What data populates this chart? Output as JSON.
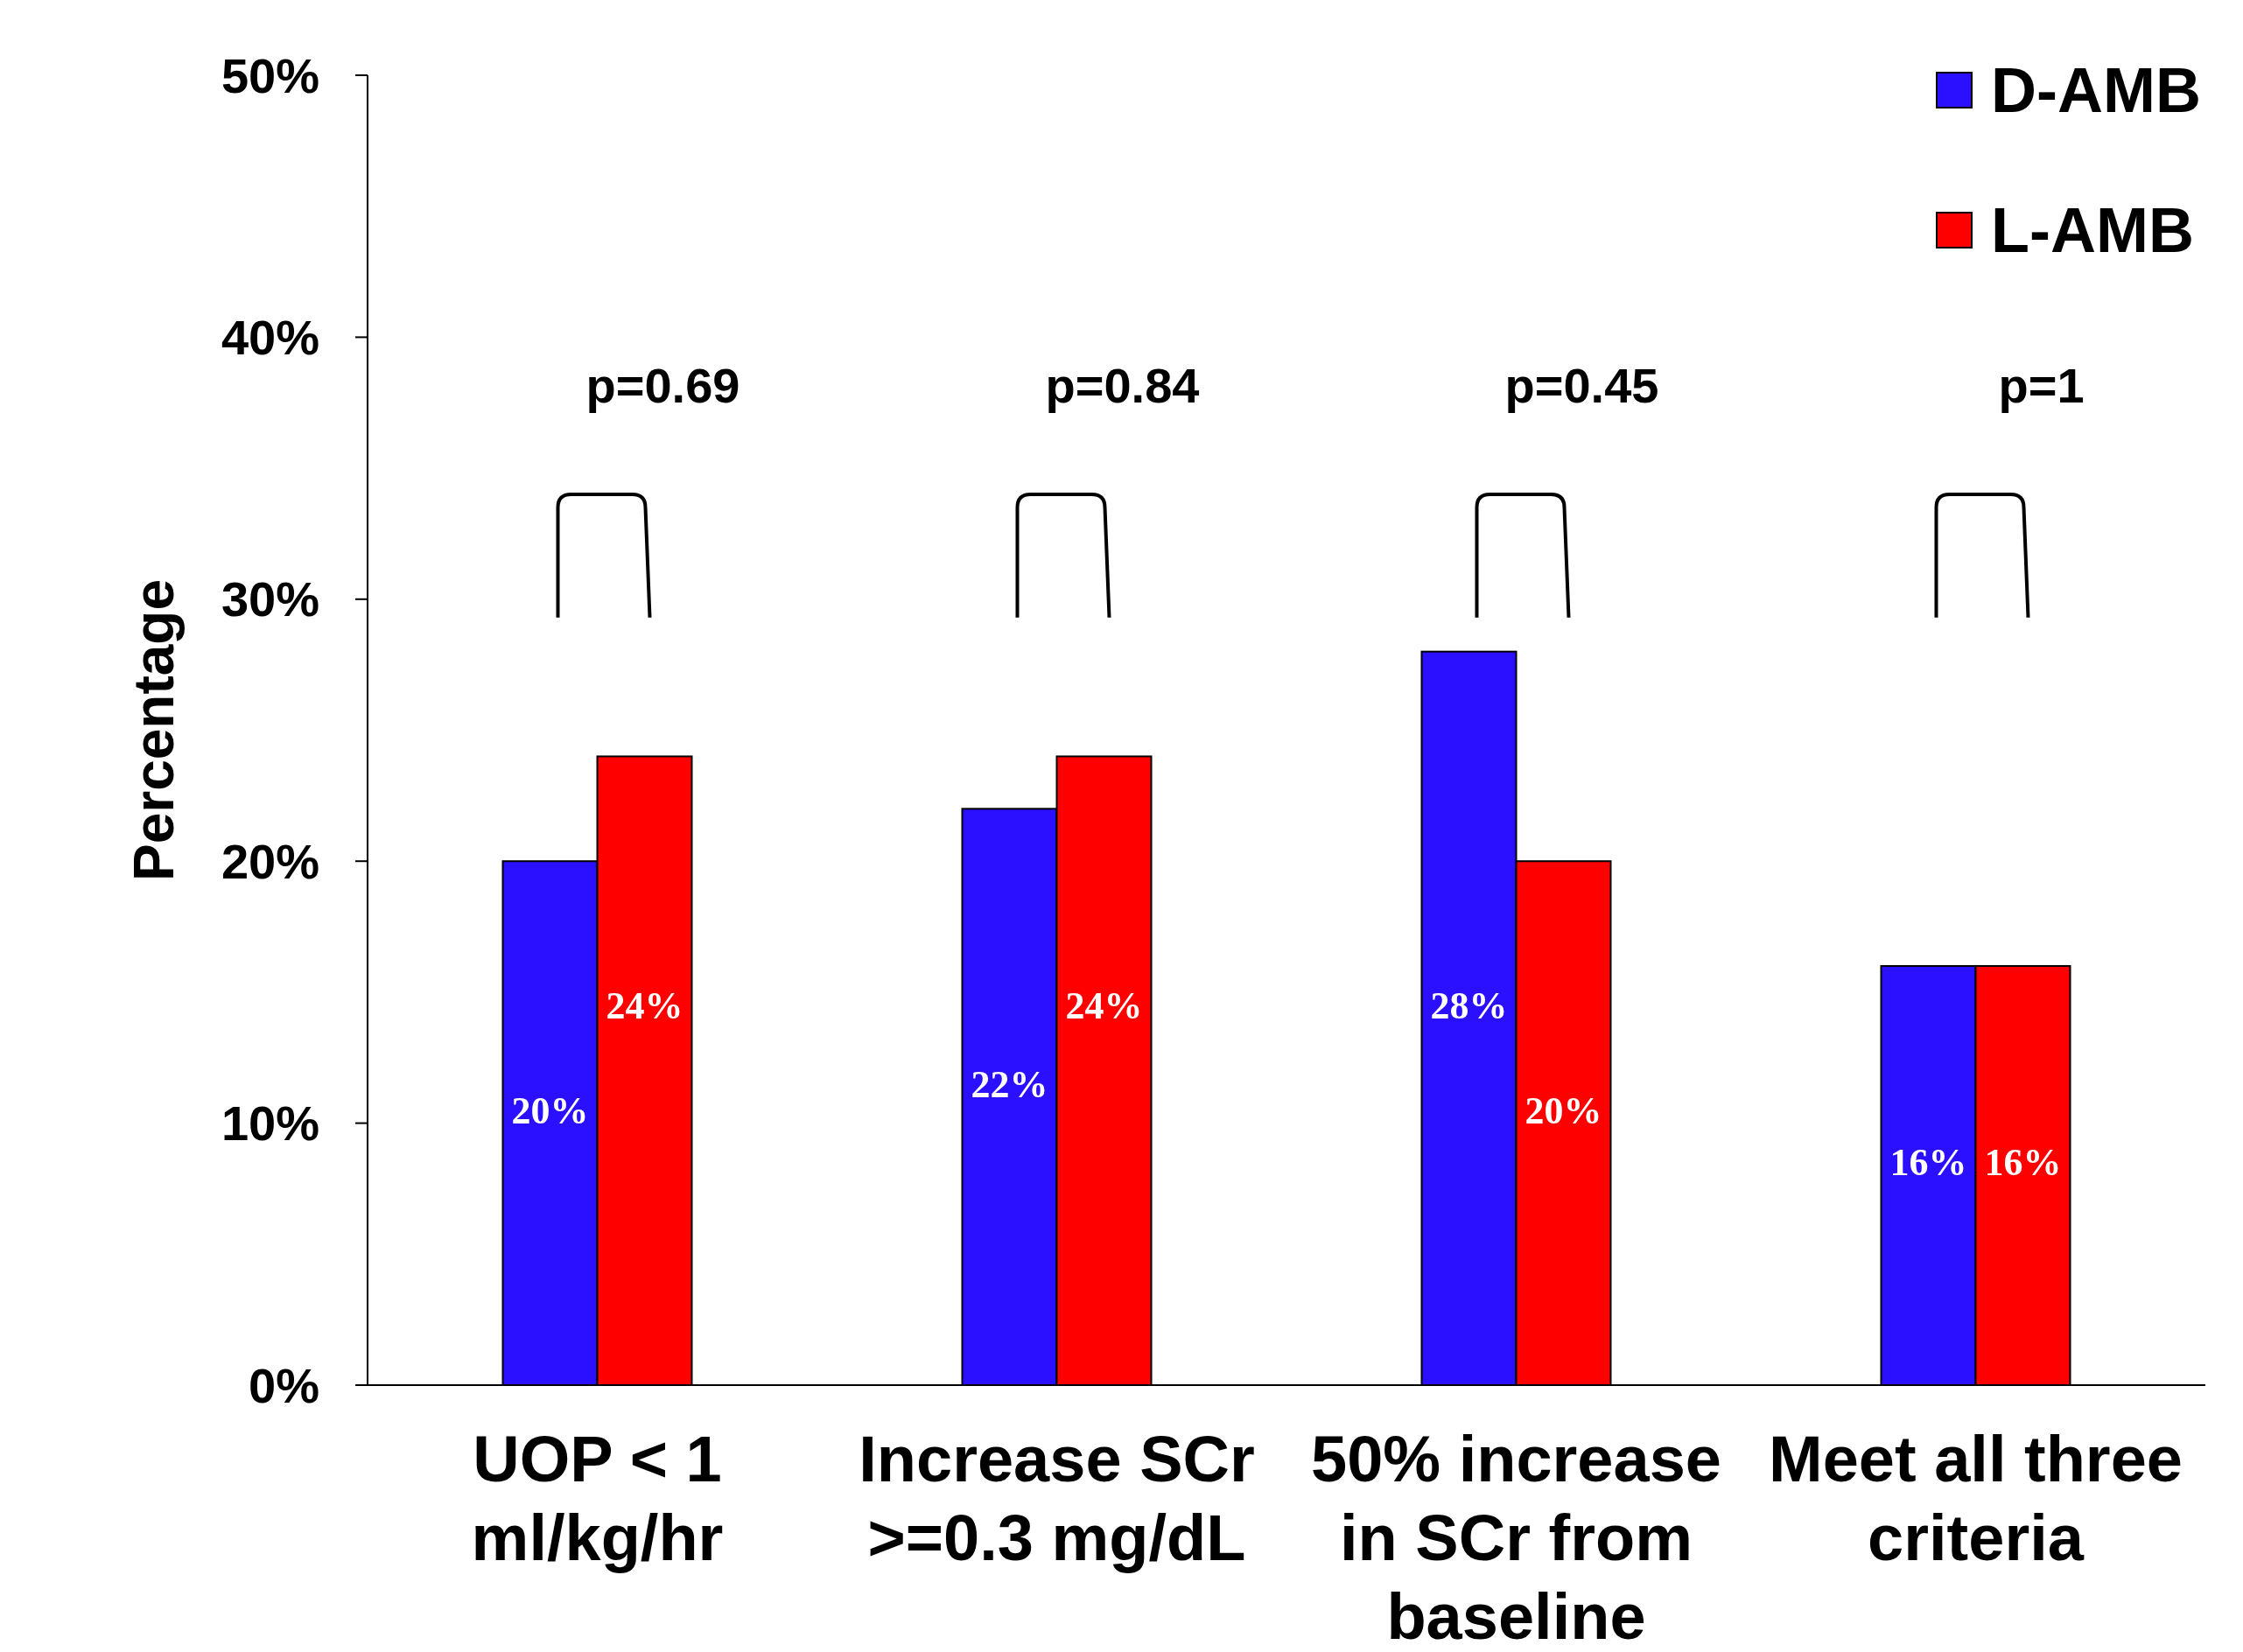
{
  "chart_data": {
    "type": "bar",
    "ylabel": "Percentage",
    "categories": [
      "UOP < 1 ml/kg/hr",
      "Increase SCr >=0.3 mg/dL",
      "50% increase in SCr from baseline",
      "Meet all three criteria"
    ],
    "series": [
      {
        "name": "D-AMB",
        "color": "#2b0fff",
        "values": [
          20,
          22,
          28,
          16
        ]
      },
      {
        "name": "L-AMB",
        "color": "#ff0000",
        "values": [
          24,
          24,
          20,
          16
        ]
      }
    ],
    "value_labels": [
      [
        "20%",
        "22%",
        "28%",
        "16%"
      ],
      [
        "24%",
        "24%",
        "20%",
        "16%"
      ]
    ],
    "ylim": [
      0,
      50
    ],
    "yticks": [
      {
        "value": 0,
        "label": "0%"
      },
      {
        "value": 10,
        "label": "10%"
      },
      {
        "value": 20,
        "label": "20%"
      },
      {
        "value": 30,
        "label": "30%"
      },
      {
        "value": 40,
        "label": "40%"
      },
      {
        "value": 50,
        "label": "50%"
      }
    ],
    "annotations": [
      "p=0.69",
      "p=0.84",
      "p=0.45",
      "p=1"
    ],
    "legend": "top right",
    "grid": false
  }
}
